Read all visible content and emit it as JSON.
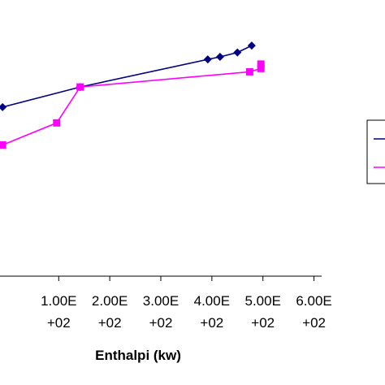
{
  "chart_data": {
    "type": "line",
    "title": "",
    "xlabel": "Enthalpi (kw)",
    "ylabel": "",
    "xlim": [
      -15,
      615
    ],
    "ylim": [
      0,
      1
    ],
    "x_ticks": [
      {
        "value": 100,
        "line1": "1.00E",
        "line2": "+02"
      },
      {
        "value": 200,
        "line1": "2.00E",
        "line2": "+02"
      },
      {
        "value": 300,
        "line1": "3.00E",
        "line2": "+02"
      },
      {
        "value": 400,
        "line1": "4.00E",
        "line2": "+02"
      },
      {
        "value": 500,
        "line1": "5.00E",
        "line2": "+02"
      },
      {
        "value": 600,
        "line1": "6.00E",
        "line2": "+02"
      }
    ],
    "grid": false,
    "legend": {
      "placement": "right",
      "entries": [
        "",
        ""
      ]
    },
    "series": [
      {
        "color": "#000080",
        "marker": "diamond",
        "x": [
          -10,
          142,
          392,
          416,
          450,
          478
        ],
        "y": [
          0.612,
          0.685,
          0.785,
          0.794,
          0.81,
          0.835
        ]
      },
      {
        "color": "#ff00ff",
        "marker": "square",
        "x": [
          -10,
          96,
          142,
          474,
          496,
          496
        ],
        "y": [
          0.475,
          0.555,
          0.685,
          0.74,
          0.752,
          0.768
        ]
      }
    ]
  }
}
